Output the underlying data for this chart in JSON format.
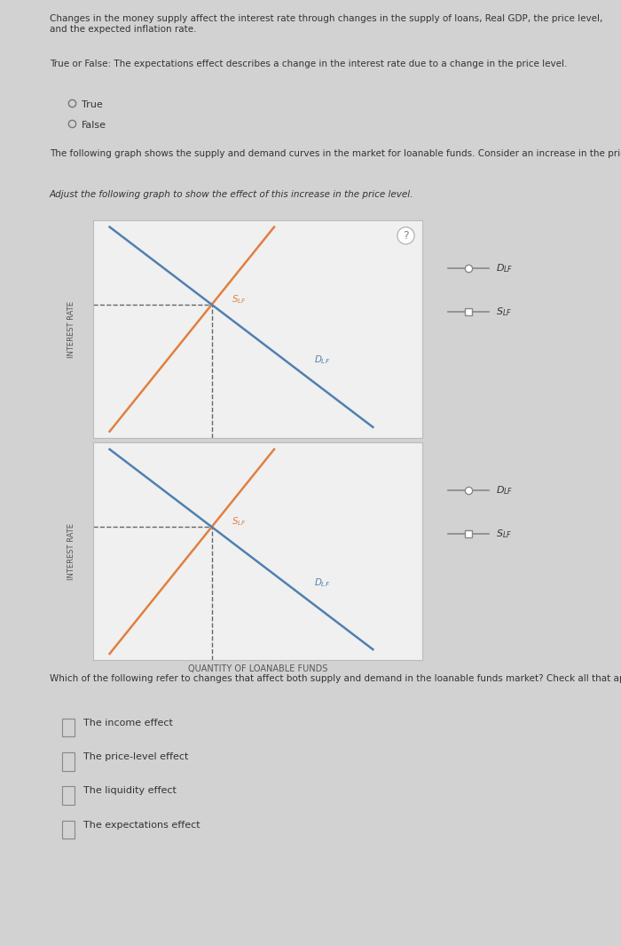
{
  "page_bg": "#d2d2d2",
  "graph_bg": "#f0f0f0",
  "graph_border": "#bbbbbb",
  "header_text": "Changes in the money supply affect the interest rate through changes in the supply of loans, Real GDP, the price level, and the expected inflation rate.",
  "question1": "True or False: The expectations effect describes a change in the interest rate due to a change in the price level.",
  "true_label": "True",
  "false_label": "False",
  "graph1_header": "The following graph shows the supply and demand curves in the market for loanable funds. Consider an increase in the price level.",
  "graph1_subheader": "Adjust the following graph to show the effect of this increase in the price level.",
  "graph2_question": "Which of the following refer to changes that affect both supply and demand in the loanable funds market? Check all that apply.",
  "checkboxes": [
    "The income effect",
    "The price-level effect",
    "The liquidity effect",
    "The expectations effect"
  ],
  "ylabel": "INTEREST RATE",
  "xlabel": "QUANTITY OF LOANABLE FUNDS",
  "supply_color": "#e08040",
  "demand_color": "#5080b0",
  "legend_color": "#888888",
  "text_color": "#333333",
  "dashed_color": "#666666"
}
